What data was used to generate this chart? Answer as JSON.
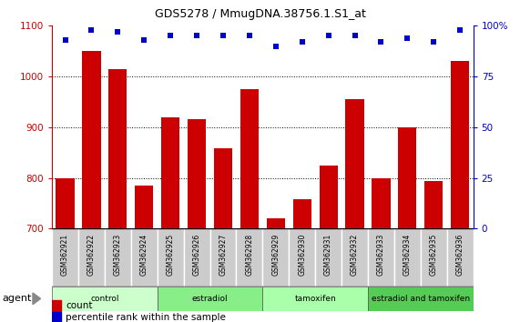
{
  "title": "GDS5278 / MmugDNA.38756.1.S1_at",
  "samples": [
    "GSM362921",
    "GSM362922",
    "GSM362923",
    "GSM362924",
    "GSM362925",
    "GSM362926",
    "GSM362927",
    "GSM362928",
    "GSM362929",
    "GSM362930",
    "GSM362931",
    "GSM362932",
    "GSM362933",
    "GSM362934",
    "GSM362935",
    "GSM362936"
  ],
  "counts": [
    800,
    1050,
    1015,
    785,
    920,
    915,
    858,
    975,
    720,
    758,
    825,
    955,
    800,
    900,
    793,
    1030
  ],
  "percentile_ranks": [
    93,
    98,
    97,
    93,
    95,
    95,
    95,
    95,
    90,
    92,
    95,
    95,
    92,
    94,
    92,
    98
  ],
  "bar_color": "#cc0000",
  "dot_color": "#0000cc",
  "ylim_left": [
    700,
    1100
  ],
  "ylim_right": [
    0,
    100
  ],
  "yticks_left": [
    700,
    800,
    900,
    1000,
    1100
  ],
  "yticks_right": [
    0,
    25,
    50,
    75,
    100
  ],
  "ytick_right_labels": [
    "0",
    "25",
    "50",
    "75",
    "100%"
  ],
  "gridlines": [
    800,
    900,
    1000
  ],
  "groups": [
    {
      "label": "control",
      "start": 0,
      "end": 4,
      "color": "#ccffcc"
    },
    {
      "label": "estradiol",
      "start": 4,
      "end": 8,
      "color": "#88ee88"
    },
    {
      "label": "tamoxifen",
      "start": 8,
      "end": 12,
      "color": "#aaffaa"
    },
    {
      "label": "estradiol and tamoxifen",
      "start": 12,
      "end": 16,
      "color": "#55cc55"
    }
  ],
  "agent_label": "agent",
  "legend_count_label": "count",
  "legend_percentile_label": "percentile rank within the sample",
  "grid_color": "#000000",
  "background_color": "#ffffff",
  "sample_bg_color": "#cccccc",
  "tick_color_left": "#cc0000",
  "tick_color_right": "#0000cc",
  "left_spine_color": "#cc0000",
  "right_spine_color": "#0000cc"
}
